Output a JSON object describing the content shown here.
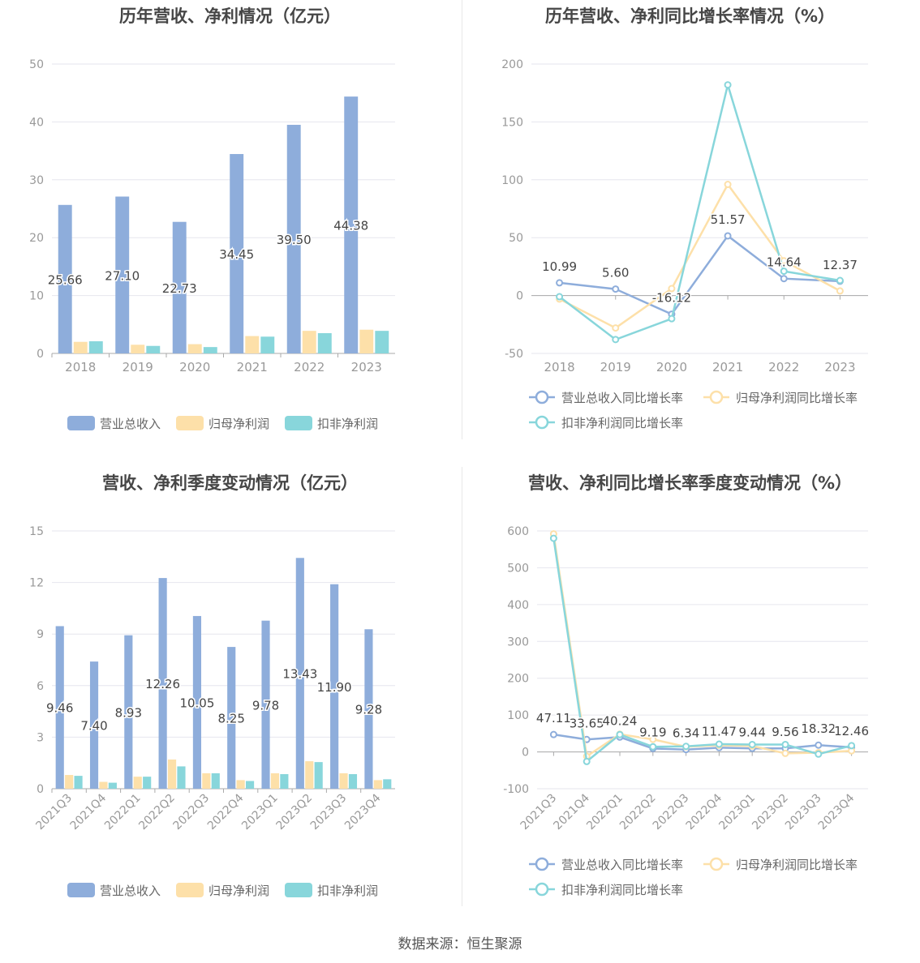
{
  "colors": {
    "revenue": "#8eaddb",
    "net_profit": "#fde0a9",
    "deducted_profit": "#88d6db",
    "axis_text": "#999999",
    "grid": "#e6e6ee",
    "label": "#444444"
  },
  "source_text": "数据来源：恒生聚源",
  "chart_data": [
    {
      "type": "bar",
      "title": "历年营收、净利情况（亿元）",
      "categories": [
        "2018",
        "2019",
        "2020",
        "2021",
        "2022",
        "2023"
      ],
      "ylim": [
        0,
        50
      ],
      "yticks": [
        0,
        10,
        20,
        30,
        40,
        50
      ],
      "grid": true,
      "legend_position": "bottom",
      "label_series": 0,
      "series": [
        {
          "name": "营业总收入",
          "values": [
            25.66,
            27.1,
            22.73,
            34.45,
            39.5,
            44.38
          ]
        },
        {
          "name": "归母净利润",
          "values": [
            2.0,
            1.5,
            1.6,
            3.0,
            3.9,
            4.1
          ]
        },
        {
          "name": "扣非净利润",
          "values": [
            2.1,
            1.3,
            1.1,
            2.9,
            3.5,
            3.9
          ]
        }
      ]
    },
    {
      "type": "line",
      "title": "历年营收、净利同比增长率情况（%）",
      "categories": [
        "2018",
        "2019",
        "2020",
        "2021",
        "2022",
        "2023"
      ],
      "ylim": [
        -50,
        200
      ],
      "yticks": [
        -50,
        0,
        50,
        100,
        150,
        200
      ],
      "grid": true,
      "legend_position": "bottom",
      "label_series": 0,
      "labels": [
        "10.99",
        "5.60",
        "-16.12",
        "51.57",
        "14.64",
        "12.37"
      ],
      "series": [
        {
          "name": "营业总收入同比增长率",
          "values": [
            10.99,
            5.6,
            -16.12,
            51.57,
            14.64,
            12.37
          ]
        },
        {
          "name": "归母净利润同比增长率",
          "values": [
            -3,
            -28,
            6,
            96,
            30,
            4
          ]
        },
        {
          "name": "扣非净利润同比增长率",
          "values": [
            -1,
            -38,
            -20,
            182,
            21,
            13
          ]
        }
      ]
    },
    {
      "type": "bar",
      "title": "营收、净利季度变动情况（亿元）",
      "categories": [
        "2021Q3",
        "2021Q4",
        "2022Q1",
        "2022Q2",
        "2022Q3",
        "2022Q4",
        "2023Q1",
        "2023Q2",
        "2023Q3",
        "2023Q4"
      ],
      "ylim": [
        0,
        15
      ],
      "yticks": [
        0,
        3,
        6,
        9,
        12,
        15
      ],
      "grid": true,
      "legend_position": "bottom",
      "label_series": 0,
      "series": [
        {
          "name": "营业总收入",
          "values": [
            9.46,
            7.4,
            8.93,
            12.26,
            10.05,
            8.25,
            9.78,
            13.43,
            11.9,
            9.28
          ]
        },
        {
          "name": "归母净利润",
          "values": [
            0.8,
            0.4,
            0.7,
            1.7,
            0.9,
            0.5,
            0.9,
            1.6,
            0.9,
            0.5
          ]
        },
        {
          "name": "扣非净利润",
          "values": [
            0.75,
            0.35,
            0.7,
            1.3,
            0.9,
            0.45,
            0.85,
            1.55,
            0.85,
            0.55
          ]
        }
      ]
    },
    {
      "type": "line",
      "title": "营收、净利同比增长率季度变动情况（%）",
      "categories": [
        "2021Q3",
        "2021Q4",
        "2022Q1",
        "2022Q2",
        "2022Q3",
        "2022Q4",
        "2023Q1",
        "2023Q2",
        "2023Q3",
        "2023Q4"
      ],
      "ylim": [
        -100,
        600
      ],
      "yticks": [
        -100,
        0,
        100,
        200,
        300,
        400,
        500,
        600
      ],
      "grid": true,
      "legend_position": "bottom",
      "label_series": 0,
      "labels": [
        "47.11",
        "33.65",
        "40.24",
        "9.19",
        "6.34",
        "11.47",
        "9.44",
        "9.56",
        "18.32",
        "12.46"
      ],
      "series": [
        {
          "name": "营业总收入同比增长率",
          "values": [
            47.11,
            33.65,
            40.24,
            9.19,
            6.34,
            11.47,
            9.44,
            9.56,
            18.32,
            12.46
          ]
        },
        {
          "name": "归母净利润同比增长率",
          "values": [
            592,
            -12,
            48,
            34,
            14,
            18,
            16,
            -4,
            -2,
            3
          ]
        },
        {
          "name": "扣非净利润同比增长率",
          "values": [
            580,
            -26,
            47,
            14,
            15,
            21,
            20,
            20,
            -6,
            17
          ]
        }
      ]
    }
  ]
}
